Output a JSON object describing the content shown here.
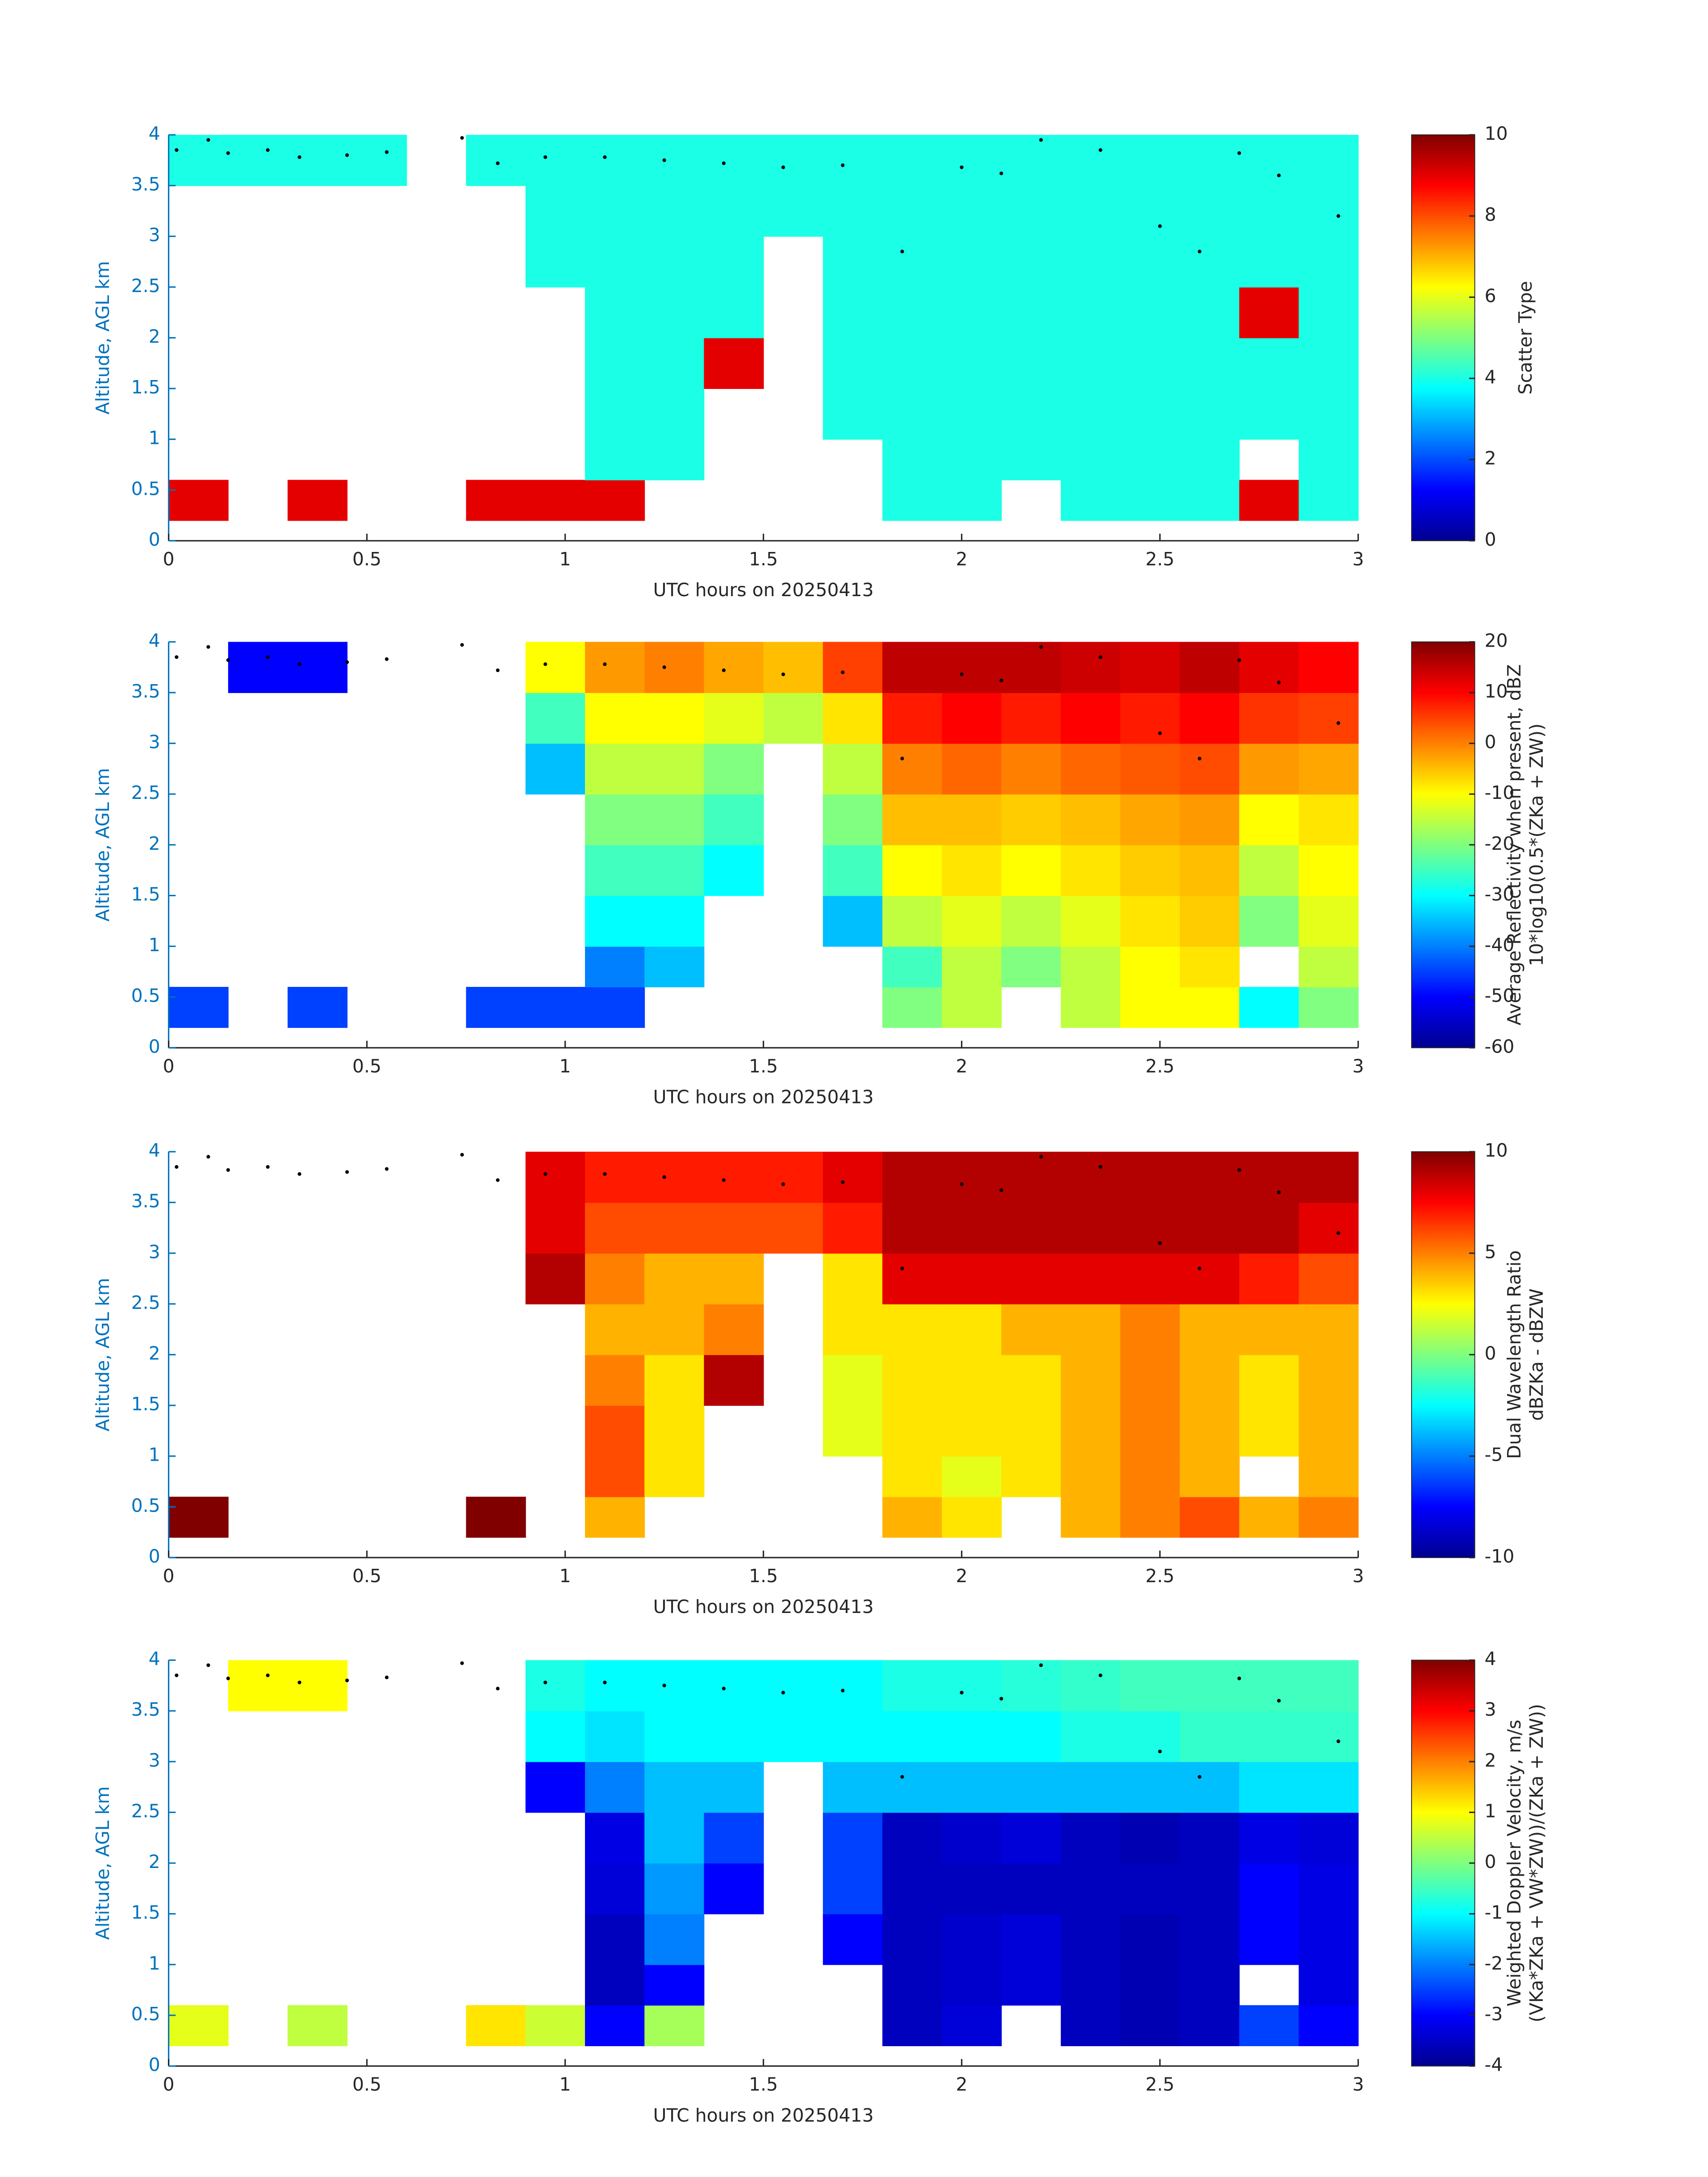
{
  "chart_data": [
    {
      "type": "heatmap",
      "xlabel": "UTC hours on 20250413",
      "ylabel": "Altitude, AGL km",
      "xlim": [
        0,
        3
      ],
      "xticks": [
        0,
        0.5,
        1,
        1.5,
        2,
        2.5,
        3
      ],
      "ylim": [
        0,
        4
      ],
      "yticks": [
        0,
        0.5,
        1,
        1.5,
        2,
        2.5,
        3,
        3.5,
        4
      ],
      "x_edges": [
        0,
        0.15,
        0.3,
        0.45,
        0.6,
        0.75,
        0.9,
        1.05,
        1.2,
        1.35,
        1.5,
        1.65,
        1.8,
        1.95,
        2.1,
        2.25,
        2.4,
        2.55,
        2.7,
        2.85,
        3
      ],
      "y_edges": [
        0.2,
        0.6,
        1,
        1.5,
        2,
        2.5,
        3,
        3.5,
        4
      ],
      "colormap": "jet",
      "clim": [
        0,
        10
      ],
      "cticks": [
        0,
        2,
        4,
        6,
        8,
        10
      ],
      "colorbar_label": [
        "Scatter Type"
      ],
      "values": [
        [
          9,
          null,
          9,
          null,
          null,
          9,
          9,
          9,
          null,
          null,
          null,
          null,
          4,
          4,
          null,
          4,
          4,
          4,
          9,
          4
        ],
        [
          null,
          null,
          null,
          null,
          null,
          null,
          null,
          4,
          4,
          null,
          null,
          null,
          4,
          4,
          4,
          4,
          4,
          4,
          null,
          4
        ],
        [
          null,
          null,
          null,
          null,
          null,
          null,
          null,
          4,
          4,
          null,
          null,
          4,
          4,
          4,
          4,
          4,
          4,
          4,
          4,
          4
        ],
        [
          null,
          null,
          null,
          null,
          null,
          null,
          null,
          4,
          4,
          9,
          null,
          4,
          4,
          4,
          4,
          4,
          4,
          4,
          4,
          4
        ],
        [
          null,
          null,
          null,
          null,
          null,
          null,
          null,
          4,
          4,
          4,
          null,
          4,
          4,
          4,
          4,
          4,
          4,
          4,
          9,
          4
        ],
        [
          null,
          null,
          null,
          null,
          null,
          null,
          4,
          4,
          4,
          4,
          null,
          4,
          4,
          4,
          4,
          4,
          4,
          4,
          4,
          4
        ],
        [
          null,
          null,
          null,
          null,
          null,
          null,
          4,
          4,
          4,
          4,
          4,
          4,
          4,
          4,
          4,
          4,
          4,
          4,
          4,
          4
        ],
        [
          4,
          4,
          4,
          4,
          null,
          4,
          4,
          4,
          4,
          4,
          4,
          4,
          4,
          4,
          4,
          4,
          4,
          4,
          4,
          4
        ]
      ],
      "dots": {
        "x": [
          0.02,
          0.1,
          0.15,
          0.25,
          0.33,
          0.45,
          0.55,
          0.74,
          0.83,
          0.95,
          1.1,
          1.25,
          1.4,
          1.55,
          1.7,
          1.85,
          2.0,
          2.1,
          2.2,
          2.35,
          2.5,
          2.6,
          2.7,
          2.8,
          2.95
        ],
        "y": [
          3.85,
          3.95,
          3.82,
          3.85,
          3.78,
          3.8,
          3.83,
          3.97,
          3.72,
          3.78,
          3.78,
          3.75,
          3.72,
          3.68,
          3.7,
          2.85,
          3.68,
          3.62,
          3.95,
          3.85,
          3.1,
          2.85,
          3.82,
          3.6,
          3.2
        ]
      }
    },
    {
      "type": "heatmap",
      "xlabel": "UTC hours on 20250413",
      "ylabel": "Altitude, AGL km",
      "xlim": [
        0,
        3
      ],
      "xticks": [
        0,
        0.5,
        1,
        1.5,
        2,
        2.5,
        3
      ],
      "ylim": [
        0,
        4
      ],
      "yticks": [
        0,
        0.5,
        1,
        1.5,
        2,
        2.5,
        3,
        3.5,
        4
      ],
      "x_edges": [
        0,
        0.15,
        0.3,
        0.45,
        0.6,
        0.75,
        0.9,
        1.05,
        1.2,
        1.35,
        1.5,
        1.65,
        1.8,
        1.95,
        2.1,
        2.25,
        2.4,
        2.55,
        2.7,
        2.85,
        3
      ],
      "y_edges": [
        0.2,
        0.6,
        1,
        1.5,
        2,
        2.5,
        3,
        3.5,
        4
      ],
      "colormap": "jet",
      "clim": [
        -60,
        20
      ],
      "cticks": [
        -60,
        -50,
        -40,
        -30,
        -20,
        -10,
        0,
        10,
        20
      ],
      "colorbar_label": [
        "Average Reflectivity when present, dBZ",
        "10*log10(0.5*(ZKa + ZW))"
      ],
      "values": [
        [
          -45,
          null,
          -45,
          null,
          null,
          -45,
          -45,
          -45,
          null,
          null,
          null,
          null,
          -20,
          -15,
          null,
          -15,
          -10,
          -10,
          -30,
          -20
        ],
        [
          null,
          null,
          null,
          null,
          null,
          null,
          null,
          -40,
          -35,
          null,
          null,
          null,
          -25,
          -15,
          -20,
          -15,
          -10,
          -8,
          null,
          -15
        ],
        [
          null,
          null,
          null,
          null,
          null,
          null,
          null,
          -30,
          -30,
          null,
          null,
          -35,
          -15,
          -12,
          -15,
          -12,
          -8,
          -6,
          -20,
          -12
        ],
        [
          null,
          null,
          null,
          null,
          null,
          null,
          null,
          -25,
          -25,
          -30,
          null,
          -25,
          -10,
          -8,
          -10,
          -8,
          -6,
          -5,
          -15,
          -10
        ],
        [
          null,
          null,
          null,
          null,
          null,
          null,
          null,
          -20,
          -20,
          -25,
          null,
          -20,
          -5,
          -5,
          -6,
          -5,
          -3,
          -2,
          -10,
          -8
        ],
        [
          null,
          null,
          null,
          null,
          null,
          null,
          -35,
          -15,
          -15,
          -20,
          null,
          -15,
          0,
          2,
          0,
          2,
          3,
          4,
          -2,
          -3
        ],
        [
          null,
          null,
          null,
          null,
          null,
          null,
          -25,
          -10,
          -10,
          -12,
          -15,
          -8,
          8,
          10,
          8,
          10,
          8,
          10,
          6,
          5
        ],
        [
          null,
          -50,
          -50,
          null,
          null,
          null,
          -10,
          -2,
          0,
          -3,
          -5,
          5,
          15,
          15,
          15,
          14,
          13,
          15,
          12,
          10
        ]
      ],
      "dots": {
        "x": [
          0.02,
          0.1,
          0.15,
          0.25,
          0.33,
          0.45,
          0.55,
          0.74,
          0.83,
          0.95,
          1.1,
          1.25,
          1.4,
          1.55,
          1.7,
          1.85,
          2.0,
          2.1,
          2.2,
          2.35,
          2.5,
          2.6,
          2.7,
          2.8,
          2.95
        ],
        "y": [
          3.85,
          3.95,
          3.82,
          3.85,
          3.78,
          3.8,
          3.83,
          3.97,
          3.72,
          3.78,
          3.78,
          3.75,
          3.72,
          3.68,
          3.7,
          2.85,
          3.68,
          3.62,
          3.95,
          3.85,
          3.1,
          2.85,
          3.82,
          3.6,
          3.2
        ]
      }
    },
    {
      "type": "heatmap",
      "xlabel": "UTC hours on 20250413",
      "ylabel": "Altitude, AGL km",
      "xlim": [
        0,
        3
      ],
      "xticks": [
        0,
        0.5,
        1,
        1.5,
        2,
        2.5,
        3
      ],
      "ylim": [
        0,
        4
      ],
      "yticks": [
        0,
        0.5,
        1,
        1.5,
        2,
        2.5,
        3,
        3.5,
        4
      ],
      "x_edges": [
        0,
        0.15,
        0.3,
        0.45,
        0.6,
        0.75,
        0.9,
        1.05,
        1.2,
        1.35,
        1.5,
        1.65,
        1.8,
        1.95,
        2.1,
        2.25,
        2.4,
        2.55,
        2.7,
        2.85,
        3
      ],
      "y_edges": [
        0.2,
        0.6,
        1,
        1.5,
        2,
        2.5,
        3,
        3.5,
        4
      ],
      "colormap": "jet",
      "clim": [
        -10,
        10
      ],
      "cticks": [
        -10,
        -5,
        0,
        5,
        10
      ],
      "colorbar_label": [
        "Dual Wavelength Ratio",
        "dBZKa - dBZW"
      ],
      "values": [
        [
          10,
          null,
          null,
          null,
          null,
          10,
          null,
          4,
          null,
          null,
          null,
          null,
          4,
          3,
          null,
          4,
          5,
          6,
          4,
          5
        ],
        [
          null,
          null,
          null,
          null,
          null,
          null,
          null,
          6,
          3,
          null,
          null,
          null,
          3,
          2,
          3,
          4,
          5,
          4,
          null,
          4
        ],
        [
          null,
          null,
          null,
          null,
          null,
          null,
          null,
          6,
          3,
          null,
          null,
          2,
          3,
          3,
          3,
          4,
          5,
          4,
          3,
          4
        ],
        [
          null,
          null,
          null,
          null,
          null,
          null,
          null,
          5,
          3,
          9,
          null,
          2,
          3,
          3,
          3,
          4,
          5,
          4,
          3,
          4
        ],
        [
          null,
          null,
          null,
          null,
          null,
          null,
          null,
          4,
          4,
          5,
          null,
          3,
          3,
          3,
          4,
          4,
          5,
          4,
          4,
          4
        ],
        [
          null,
          null,
          null,
          null,
          null,
          null,
          9,
          5,
          4,
          4,
          null,
          3,
          8,
          8,
          8,
          8,
          8,
          8,
          7,
          6
        ],
        [
          null,
          null,
          null,
          null,
          null,
          null,
          8,
          6,
          6,
          6,
          6,
          7,
          9,
          9,
          9,
          9,
          9,
          9,
          9,
          8
        ],
        [
          null,
          null,
          null,
          null,
          null,
          null,
          8,
          7,
          7,
          7,
          7,
          8,
          9,
          9,
          9,
          9,
          9,
          9,
          9,
          9
        ]
      ],
      "dots": {
        "x": [
          0.02,
          0.1,
          0.15,
          0.25,
          0.33,
          0.45,
          0.55,
          0.74,
          0.83,
          0.95,
          1.1,
          1.25,
          1.4,
          1.55,
          1.7,
          1.85,
          2.0,
          2.1,
          2.2,
          2.35,
          2.5,
          2.6,
          2.7,
          2.8,
          2.95
        ],
        "y": [
          3.85,
          3.95,
          3.82,
          3.85,
          3.78,
          3.8,
          3.83,
          3.97,
          3.72,
          3.78,
          3.78,
          3.75,
          3.72,
          3.68,
          3.7,
          2.85,
          3.68,
          3.62,
          3.95,
          3.85,
          3.1,
          2.85,
          3.82,
          3.6,
          3.2
        ]
      }
    },
    {
      "type": "heatmap",
      "xlabel": "UTC hours on 20250413",
      "ylabel": "Altitude, AGL km",
      "xlim": [
        0,
        3
      ],
      "xticks": [
        0,
        0.5,
        1,
        1.5,
        2,
        2.5,
        3
      ],
      "ylim": [
        0,
        4
      ],
      "yticks": [
        0,
        0.5,
        1,
        1.5,
        2,
        2.5,
        3,
        3.5,
        4
      ],
      "x_edges": [
        0,
        0.15,
        0.3,
        0.45,
        0.6,
        0.75,
        0.9,
        1.05,
        1.2,
        1.35,
        1.5,
        1.65,
        1.8,
        1.95,
        2.1,
        2.25,
        2.4,
        2.55,
        2.7,
        2.85,
        3
      ],
      "y_edges": [
        0.2,
        0.6,
        1,
        1.5,
        2,
        2.5,
        3,
        3.5,
        4
      ],
      "colormap": "jet",
      "clim": [
        -4,
        4
      ],
      "cticks": [
        -4,
        -3,
        -2,
        -1,
        0,
        1,
        2,
        3,
        4
      ],
      "colorbar_label": [
        "Weighted Doppler Velocity, m/s",
        "(VKa*ZKa + VW*ZW))/(ZKa + ZW))"
      ],
      "values": [
        [
          0.8,
          null,
          0.5,
          null,
          null,
          1.2,
          0.6,
          -3,
          0.3,
          null,
          null,
          null,
          -3.5,
          -3.3,
          null,
          -3.5,
          -3.6,
          -3.5,
          -2.5,
          -3
        ],
        [
          null,
          null,
          null,
          null,
          null,
          null,
          null,
          -3.5,
          -3,
          null,
          null,
          null,
          -3.5,
          -3.4,
          -3.3,
          -3.5,
          -3.6,
          -3.5,
          null,
          -3.2
        ],
        [
          null,
          null,
          null,
          null,
          null,
          null,
          null,
          -3.5,
          -2,
          null,
          null,
          -3,
          -3.5,
          -3.4,
          -3.3,
          -3.5,
          -3.6,
          -3.5,
          -3,
          -3.2
        ],
        [
          null,
          null,
          null,
          null,
          null,
          null,
          null,
          -3.3,
          -1.8,
          -3,
          null,
          -2.5,
          -3.5,
          -3.5,
          -3.5,
          -3.5,
          -3.5,
          -3.5,
          -3,
          -3.2
        ],
        [
          null,
          null,
          null,
          null,
          null,
          null,
          null,
          -3.2,
          -1.5,
          -2.5,
          null,
          -2.5,
          -3.5,
          -3.4,
          -3.3,
          -3.5,
          -3.6,
          -3.5,
          -3.2,
          -3.3
        ],
        [
          null,
          null,
          null,
          null,
          null,
          null,
          -3,
          -2,
          -1.5,
          -1.5,
          null,
          -1.5,
          -1.5,
          -1.5,
          -1.5,
          -1.5,
          -1.5,
          -1.5,
          -1.2,
          -1.2
        ],
        [
          null,
          null,
          null,
          null,
          null,
          null,
          -1,
          -1.2,
          -1,
          -1,
          -1,
          -1,
          -1,
          -1,
          -1,
          -0.8,
          -0.8,
          -0.6,
          -0.6,
          -0.6
        ],
        [
          null,
          1,
          1,
          null,
          null,
          null,
          -0.8,
          -1,
          -1,
          -1,
          -1,
          -1,
          -0.8,
          -0.8,
          -0.7,
          -0.6,
          -0.5,
          -0.5,
          -0.5,
          -0.5
        ]
      ],
      "dots": {
        "x": [
          0.02,
          0.1,
          0.15,
          0.25,
          0.33,
          0.45,
          0.55,
          0.74,
          0.83,
          0.95,
          1.1,
          1.25,
          1.4,
          1.55,
          1.7,
          1.85,
          2.0,
          2.1,
          2.2,
          2.35,
          2.5,
          2.6,
          2.7,
          2.8,
          2.95
        ],
        "y": [
          3.85,
          3.95,
          3.82,
          3.85,
          3.78,
          3.8,
          3.83,
          3.97,
          3.72,
          3.78,
          3.78,
          3.75,
          3.72,
          3.68,
          3.7,
          2.85,
          3.68,
          3.62,
          3.95,
          3.85,
          3.1,
          2.85,
          3.82,
          3.6,
          3.2
        ]
      }
    }
  ]
}
